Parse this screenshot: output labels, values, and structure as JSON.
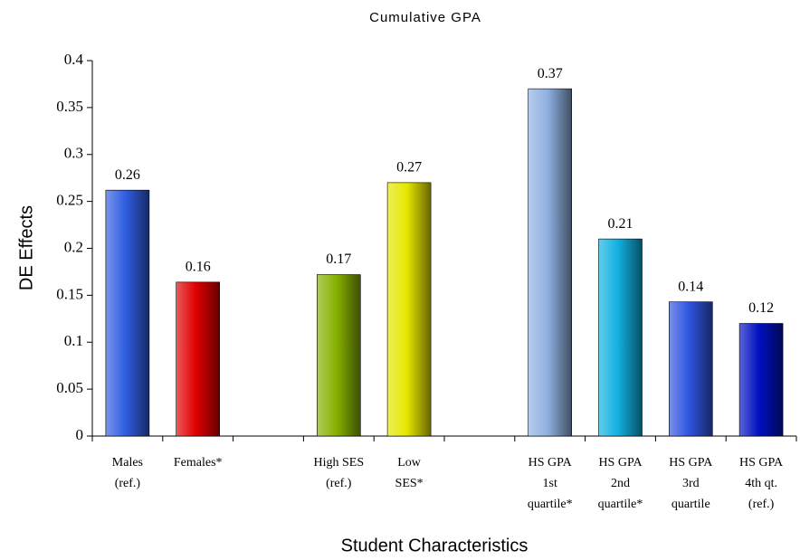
{
  "chart_data": {
    "type": "bar",
    "title": "Cumulative GPA",
    "y_label": "DE Effects",
    "x_label": "Student Characteristics",
    "categories": [
      [
        "Males",
        "(ref.)"
      ],
      [
        "Females*"
      ],
      null,
      [
        "High SES",
        "(ref.)"
      ],
      [
        "Low",
        "SES*"
      ],
      null,
      [
        "HS GPA",
        "1st",
        "quartile*"
      ],
      [
        "HS GPA",
        "2nd",
        "quartile*"
      ],
      [
        "HS GPA",
        "3rd",
        "quartile"
      ],
      [
        "HS GPA",
        "4th qt.",
        "(ref.)"
      ]
    ],
    "values": [
      0.262,
      0.164,
      null,
      0.172,
      0.27,
      null,
      0.37,
      0.21,
      0.143,
      0.12
    ],
    "value_labels": [
      "0.26",
      "0.16",
      null,
      "0.17",
      "0.27",
      null,
      "0.37",
      "0.21",
      "0.14",
      "0.12"
    ],
    "colors": [
      "#2f5ee0",
      "#e00000",
      null,
      "#86b000",
      "#e6e600",
      null,
      "#8fb0e0",
      "#10b0e0",
      "#2f55e0",
      "#0010c0"
    ],
    "ylim": [
      0,
      0.4
    ],
    "yticks": [
      0,
      0.05,
      0.1,
      0.15,
      0.2,
      0.25,
      0.3,
      0.35,
      0.4
    ]
  }
}
